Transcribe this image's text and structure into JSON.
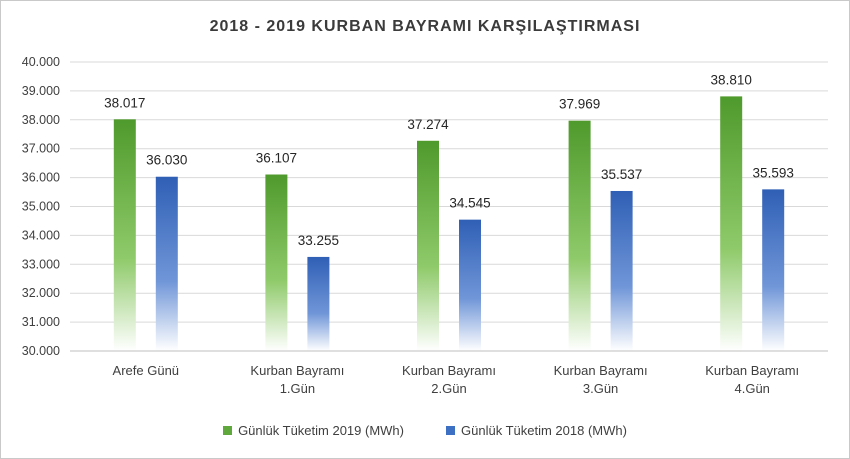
{
  "chart_data": {
    "type": "bar",
    "title": "2018 - 2019 KURBAN BAYRAMI KARŞILAŞTIRMASI",
    "categories": [
      [
        "Arefe Günü"
      ],
      [
        "Kurban Bayramı",
        "1.Gün"
      ],
      [
        "Kurban Bayramı",
        "2.Gün"
      ],
      [
        "Kurban Bayramı",
        "3.Gün"
      ],
      [
        "Kurban Bayramı",
        "4.Gün"
      ]
    ],
    "series": [
      {
        "name": "Günlük Tüketim 2019 (MWh)",
        "color": "#5fa83c",
        "values": [
          38017,
          36107,
          37274,
          37969,
          38810
        ],
        "labels": [
          "38.017",
          "36.107",
          "37.274",
          "37.969",
          "38.810"
        ]
      },
      {
        "name": "Günlük Tüketim 2018 (MWh)",
        "color": "#3d6fc2",
        "values": [
          36030,
          33255,
          34545,
          35537,
          35593
        ],
        "labels": [
          "36.030",
          "33.255",
          "34.545",
          "35.537",
          "35.593"
        ]
      }
    ],
    "ylim": [
      30000,
      40000
    ],
    "yticks": [
      "30.000",
      "31.000",
      "32.000",
      "33.000",
      "34.000",
      "35.000",
      "36.000",
      "37.000",
      "38.000",
      "39.000",
      "40.000"
    ],
    "grid": true,
    "legend_position": "bottom"
  }
}
